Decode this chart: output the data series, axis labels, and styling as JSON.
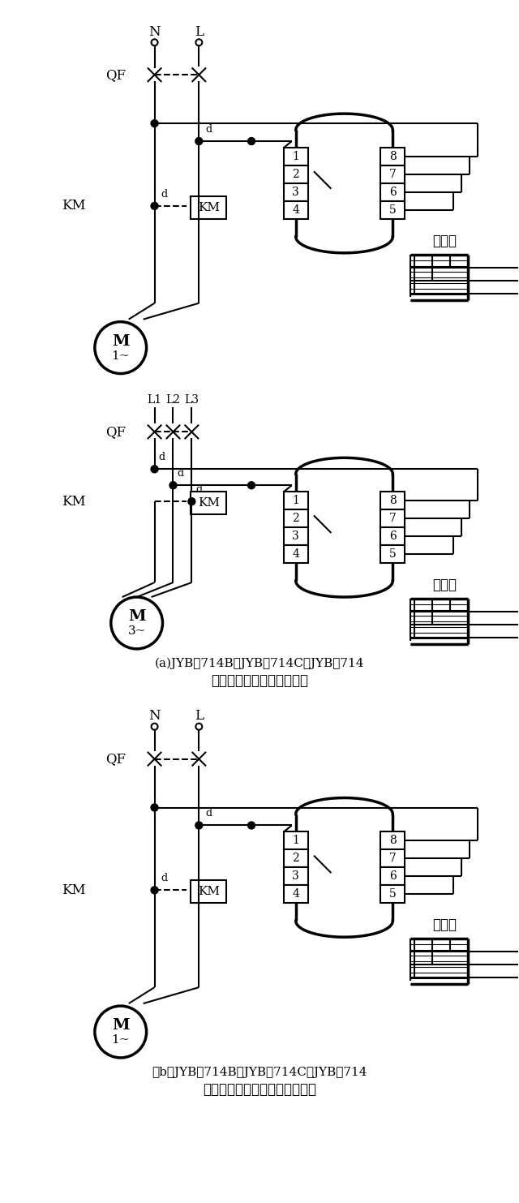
{
  "bg": "#ffffff",
  "lw": 1.5,
  "blw": 2.5,
  "caption_a1": "(a)JYB－714B、JYB－714C、JYB－714",
  "caption_a2": "液位继电器供水方式接线图",
  "caption_b1": "（b）JYB－714B、JYB－714C、JYB－714",
  "caption_b2": "液位继电器排水方式接线图乃。",
  "N_label": "N",
  "L_label": "L",
  "QF_label": "QF",
  "KM_label": "KM",
  "gaozhongdi": "高中低",
  "L123": [
    "L1",
    "L2",
    "L3"
  ],
  "M1_sub": "1~",
  "M3_sub": "3~"
}
